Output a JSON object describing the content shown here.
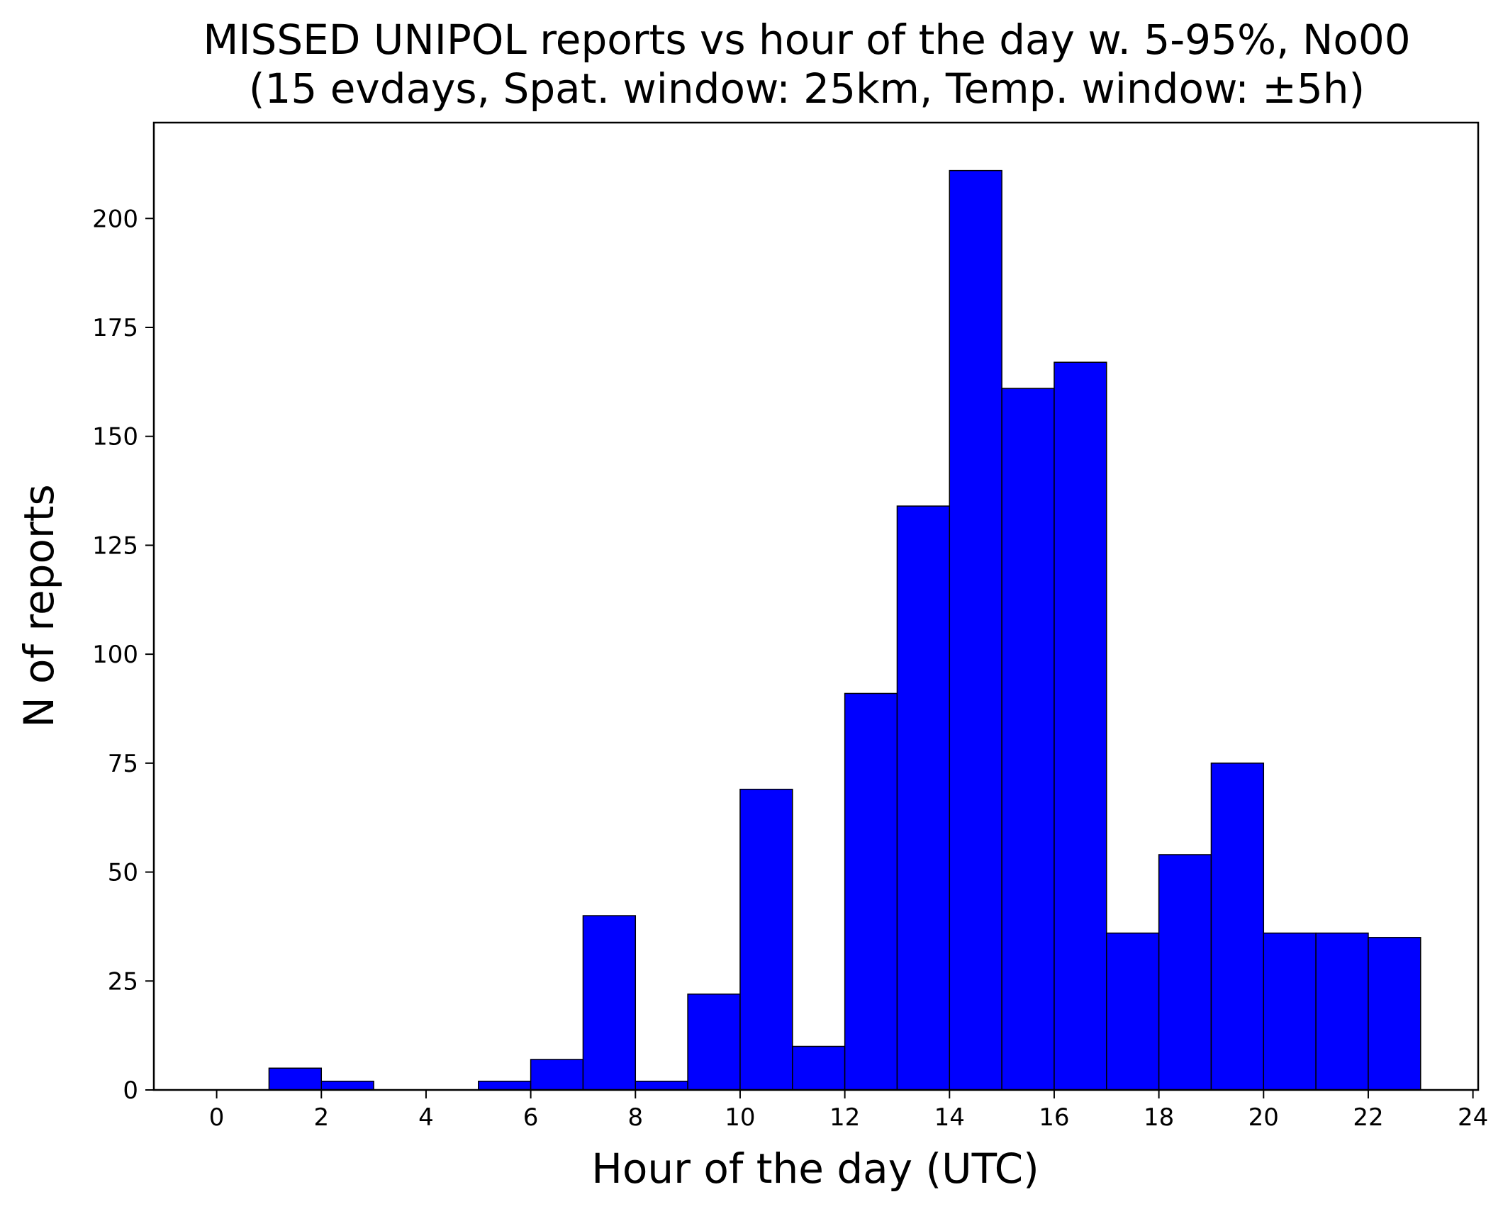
{
  "chart_data": {
    "type": "bar",
    "title": "MISSED UNIPOL reports vs hour of the day w. 5-95%, No00",
    "subtitle": "(15 evdays, Spat. window: 25km, Temp. window: ±5h)",
    "xlabel": "Hour of the day (UTC)",
    "ylabel": "N of reports",
    "bin_edges": [
      0,
      1,
      2,
      3,
      4,
      5,
      6,
      7,
      8,
      9,
      10,
      11,
      12,
      13,
      14,
      15,
      16,
      17,
      18,
      19,
      20,
      21,
      22,
      23
    ],
    "values": [
      0,
      5,
      2,
      0,
      0,
      2,
      7,
      40,
      2,
      22,
      69,
      10,
      91,
      134,
      211,
      161,
      167,
      36,
      54,
      75,
      36,
      36,
      35
    ],
    "xlim": [
      -1.2,
      24.1
    ],
    "ylim": [
      0,
      222
    ],
    "xticks": [
      0,
      2,
      4,
      6,
      8,
      10,
      12,
      14,
      16,
      18,
      20,
      22,
      24
    ],
    "xtick_labels": [
      "0",
      "2",
      "4",
      "6",
      "8",
      "10",
      "12",
      "14",
      "16",
      "18",
      "20",
      "22",
      "24"
    ],
    "yticks": [
      0,
      25,
      50,
      75,
      100,
      125,
      150,
      175,
      200
    ],
    "ytick_labels": [
      "0",
      "25",
      "50",
      "75",
      "100",
      "125",
      "150",
      "175",
      "200"
    ],
    "bar_color": "#0000ff",
    "edge_color": "#000000",
    "grid": false,
    "legend": "none"
  }
}
